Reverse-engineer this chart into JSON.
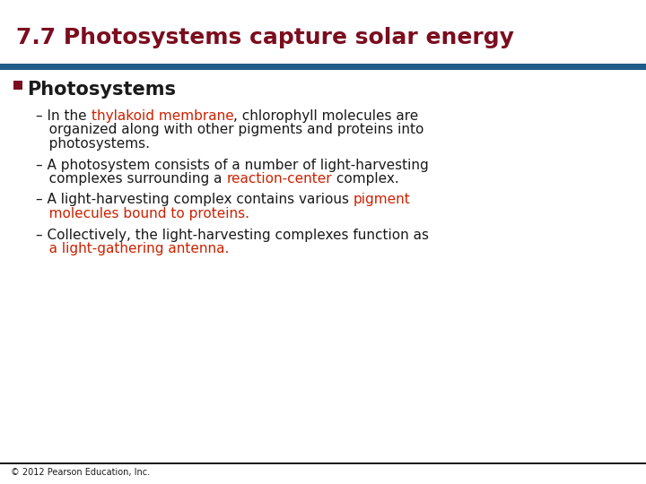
{
  "title": "7.7 Photosystems capture solar energy",
  "title_color": "#7B0D1E",
  "title_fontsize": 18,
  "header_bar_color": "#1F5C8B",
  "bullet_heading": "Photosystems",
  "bullet_square_color": "#7B0D1E",
  "bullet_heading_color": "#1a1a1a",
  "bullet_heading_fontsize": 15,
  "footer_bar_color": "#1a1a1a",
  "footer_text": "© 2012 Pearson Education, Inc.",
  "footer_fontsize": 7,
  "background_color": "#ffffff",
  "body_fontsize": 11,
  "body_color": "#1a1a1a",
  "highlight_color": "#cc2200",
  "sub_bullets": [
    {
      "lines": [
        [
          {
            "text": "– In the ",
            "color": "#1a1a1a"
          },
          {
            "text": "thylakoid membrane",
            "color": "#cc2200"
          },
          {
            "text": ", chlorophyll molecules are",
            "color": "#1a1a1a"
          }
        ],
        [
          {
            "text": "   organized along with other pigments and proteins into",
            "color": "#1a1a1a"
          }
        ],
        [
          {
            "text": "   photosystems.",
            "color": "#1a1a1a"
          }
        ]
      ]
    },
    {
      "lines": [
        [
          {
            "text": "– A photosystem consists of a number of light-harvesting",
            "color": "#1a1a1a"
          }
        ],
        [
          {
            "text": "   complexes surrounding a ",
            "color": "#1a1a1a"
          },
          {
            "text": "reaction-center",
            "color": "#cc2200"
          },
          {
            "text": " complex.",
            "color": "#1a1a1a"
          }
        ]
      ]
    },
    {
      "lines": [
        [
          {
            "text": "– A light-harvesting complex contains various ",
            "color": "#1a1a1a"
          },
          {
            "text": "pigment",
            "color": "#cc2200"
          }
        ],
        [
          {
            "text": "   molecules bound to proteins.",
            "color": "#cc2200"
          }
        ]
      ]
    },
    {
      "lines": [
        [
          {
            "text": "– Collectively, the light-harvesting complexes function as",
            "color": "#1a1a1a"
          }
        ],
        [
          {
            "text": "   a light-gathering antenna.",
            "color": "#cc2200"
          }
        ]
      ]
    }
  ]
}
